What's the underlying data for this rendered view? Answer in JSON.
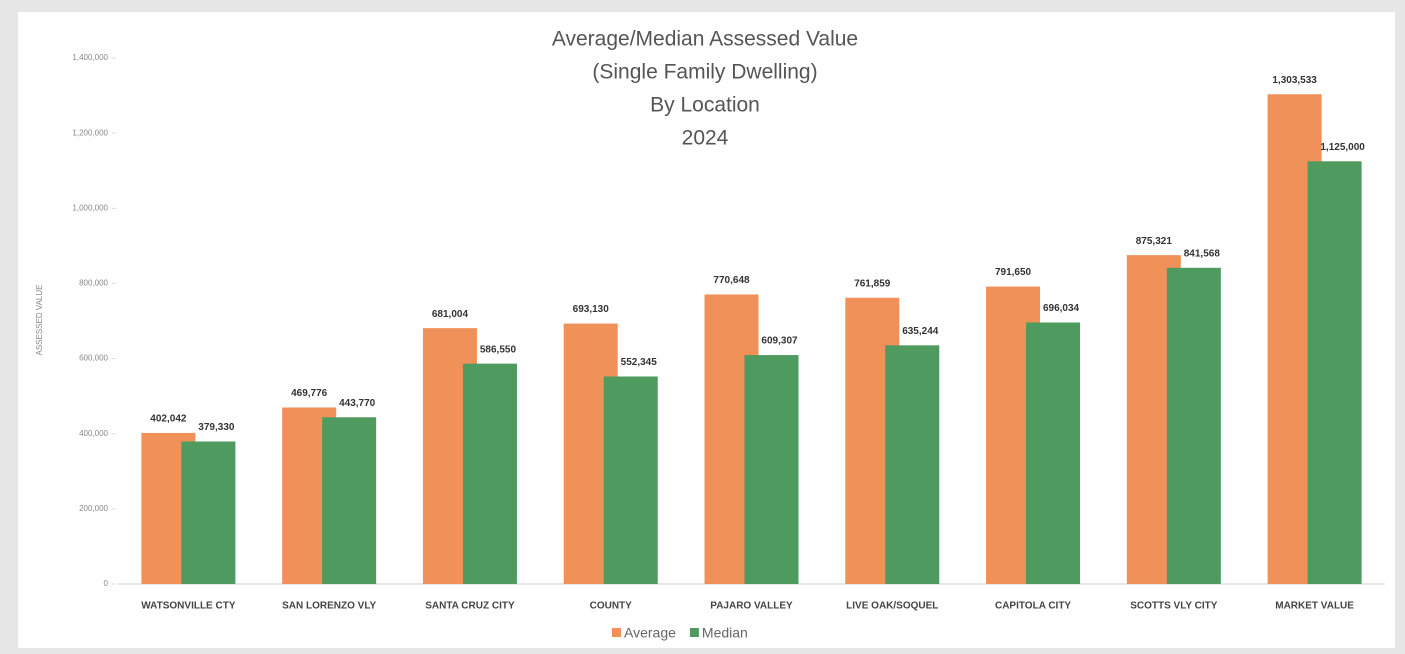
{
  "chart_data": {
    "type": "bar",
    "title": [
      "Average/Median Assessed Value",
      "(Single Family Dwelling)",
      "By Location",
      "2024"
    ],
    "y_label": "ASSESSED VALUE",
    "categories": [
      "WATSONVILLE CTY",
      "SAN LORENZO VLY",
      "SANTA CRUZ CITY",
      "COUNTY",
      "PAJARO VALLEY",
      "LIVE OAK/SOQUEL",
      "CAPITOLA CITY",
      "SCOTTS VLY CITY",
      "MARKET VALUE"
    ],
    "series": [
      {
        "name": "Average",
        "color": "#f0915a",
        "values": [
          402042,
          469776,
          681004,
          693130,
          770648,
          761859,
          791650,
          875321,
          1303533
        ],
        "value_labels": [
          "402,042",
          "469,776",
          "681,004",
          "693,130",
          "770,648",
          "761,859",
          "791,650",
          "875,321",
          "1,303,533"
        ]
      },
      {
        "name": "Median",
        "color": "#4e9a5f",
        "values": [
          379330,
          443770,
          586550,
          552345,
          609307,
          635244,
          696034,
          841568,
          1125000
        ],
        "value_labels": [
          "379,330",
          "443,770",
          "586,550",
          "552,345",
          "609,307",
          "635,244",
          "696,034",
          "841,568",
          "1,125,000"
        ]
      }
    ],
    "ylim": [
      0,
      1400000
    ],
    "yticks": [
      0,
      {
        "value": 200000,
        "label": "200,000"
      },
      {
        "value": 400000,
        "label": "400,000"
      },
      {
        "value": 600000,
        "label": "600,000"
      },
      {
        "value": 800000,
        "label": "800,000"
      },
      {
        "value": 1000000,
        "label": "1,000,000"
      },
      {
        "value": 1200000,
        "label": "1,200,000"
      },
      {
        "value": 1400000,
        "label": "1,400,000"
      }
    ],
    "legend": "bottom"
  }
}
